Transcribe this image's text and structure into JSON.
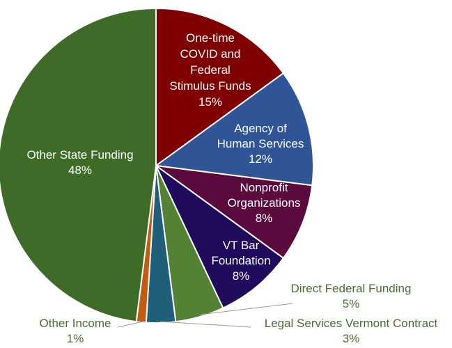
{
  "chart_data": {
    "type": "pie",
    "slices": [
      {
        "label": "One-time COVID and Federal Stimulus Funds",
        "value": 15,
        "value_label": "15%",
        "color": "#7f0000",
        "lines": [
          "One-time",
          "COVID and",
          "Federal",
          "Stimulus Funds"
        ]
      },
      {
        "label": "Agency of Human Services",
        "value": 12,
        "value_label": "12%",
        "color": "#2f5597",
        "lines": [
          "Agency of",
          "Human Services"
        ]
      },
      {
        "label": "Nonprofit Organizations",
        "value": 8,
        "value_label": "8%",
        "color": "#5b0a3e",
        "lines": [
          "Nonprofit",
          "Organizations"
        ]
      },
      {
        "label": "VT Bar Foundation",
        "value": 8,
        "value_label": "8%",
        "color": "#1f0a5c",
        "lines": [
          "VT Bar",
          "Foundation"
        ]
      },
      {
        "label": "Direct Federal Funding",
        "value": 5,
        "value_label": "5%",
        "color": "#548235",
        "lines": [
          "Direct Federal Funding"
        ]
      },
      {
        "label": "Legal Services Vermont Contract",
        "value": 3,
        "value_label": "3%",
        "color": "#1f5f7a",
        "lines": [
          "Legal Services Vermont Contract"
        ]
      },
      {
        "label": "Other Income",
        "value": 1,
        "value_label": "1%",
        "color": "#c55a11",
        "lines": [
          "Other Income"
        ]
      },
      {
        "label": "Other State Funding",
        "value": 48,
        "value_label": "48%",
        "color": "#3e6b27",
        "lines": [
          "Other State Funding"
        ]
      }
    ]
  }
}
